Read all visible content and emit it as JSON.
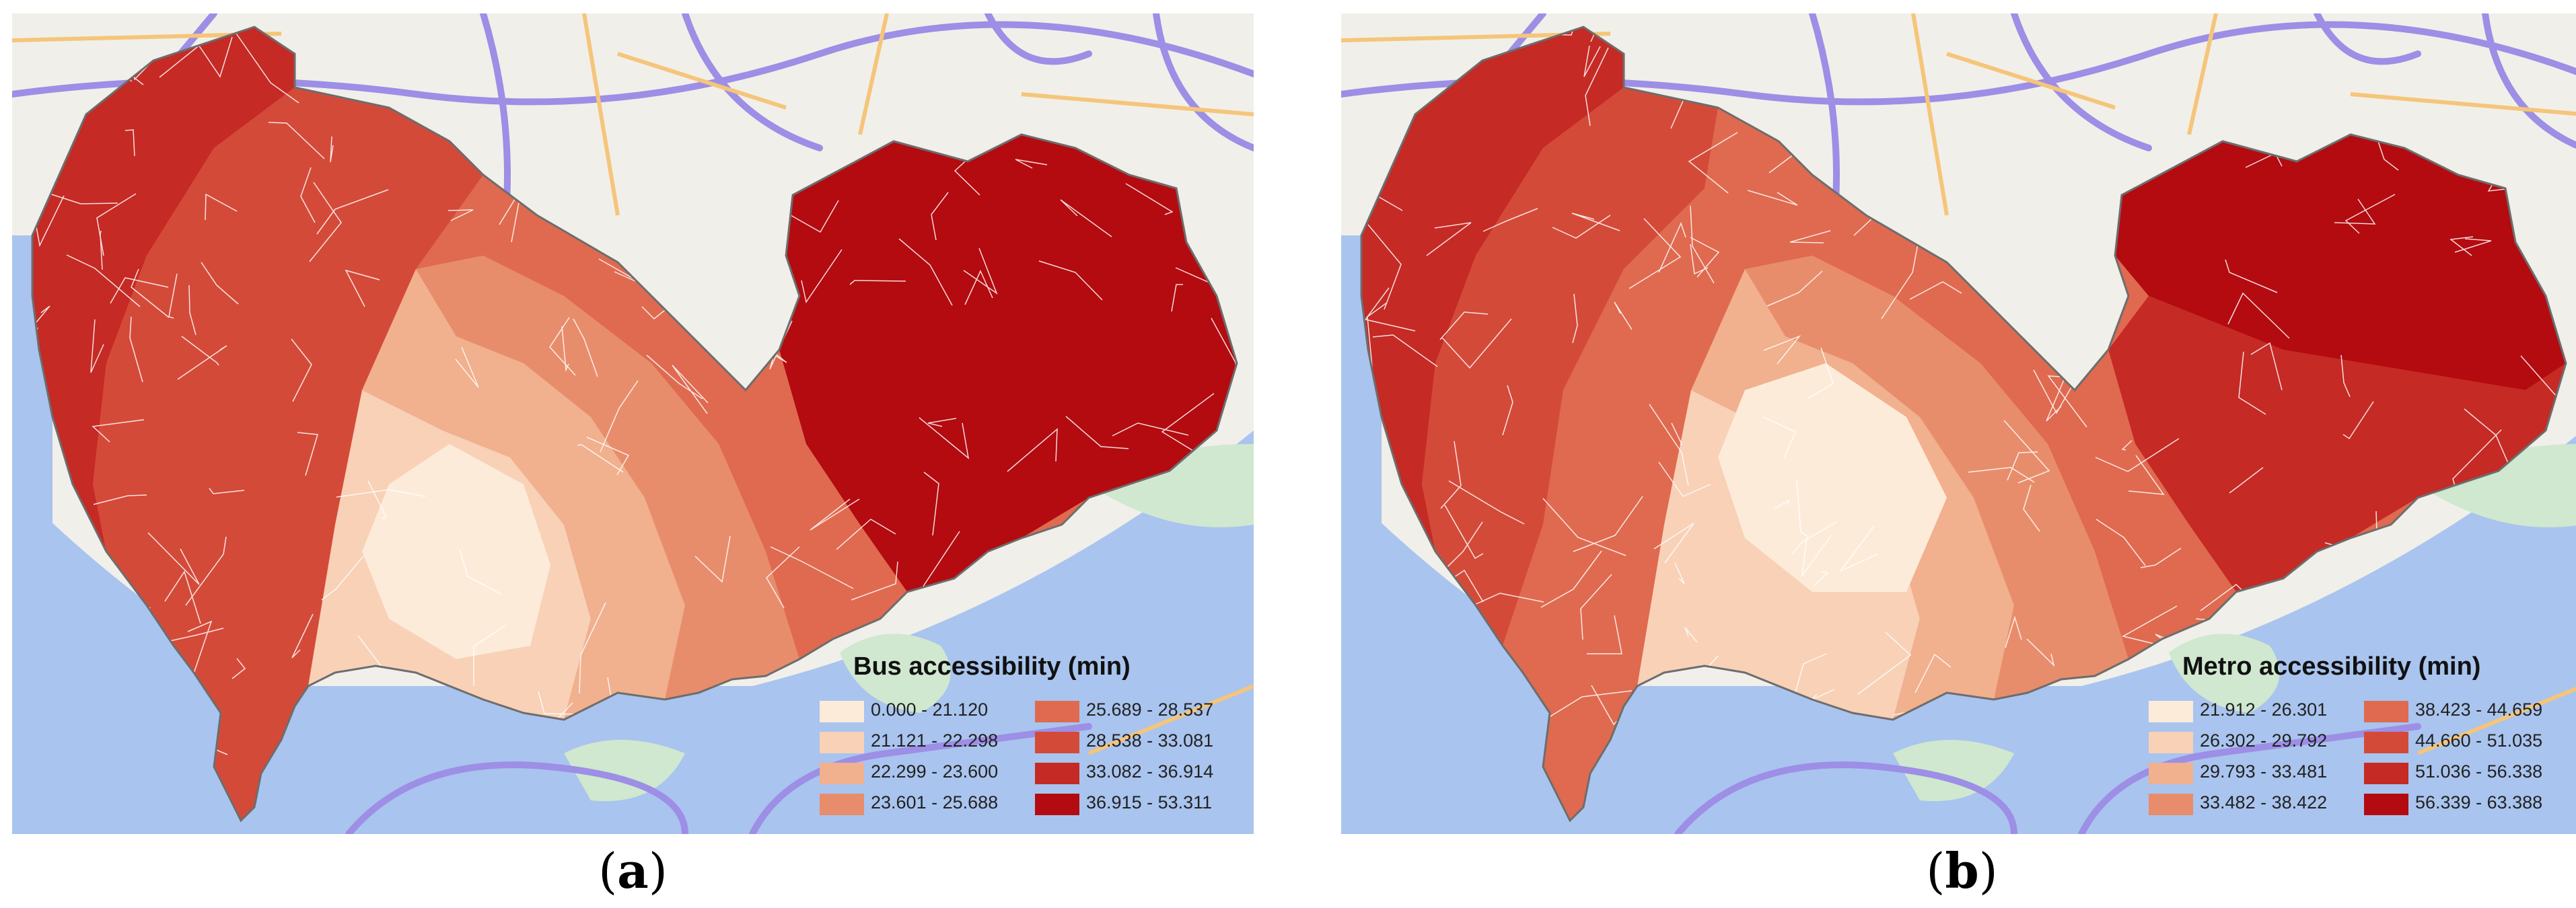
{
  "panels": [
    {
      "id": "a",
      "caption_letter": "a",
      "legend_title": "Bus accessibility (min)",
      "legend": [
        {
          "range": "0.000 - 21.120",
          "color": "#fdebd9"
        },
        {
          "range": "21.121 - 22.298",
          "color": "#f8d1b7"
        },
        {
          "range": "22.299 - 23.600",
          "color": "#f1b08e"
        },
        {
          "range": "23.601 - 25.688",
          "color": "#e88d6b"
        },
        {
          "range": "25.689 - 28.537",
          "color": "#df6a50"
        },
        {
          "range": "28.538 - 33.081",
          "color": "#d44a39"
        },
        {
          "range": "33.082 - 36.914",
          "color": "#c52a25"
        },
        {
          "range": "36.915 - 53.311",
          "color": "#b30b10"
        }
      ]
    },
    {
      "id": "b",
      "caption_letter": "b",
      "legend_title": "Metro accessibility (min)",
      "legend": [
        {
          "range": "21.912 - 26.301",
          "color": "#fdebd9"
        },
        {
          "range": "26.302 - 29.792",
          "color": "#f8d1b7"
        },
        {
          "range": "29.793 - 33.481",
          "color": "#f1b08e"
        },
        {
          "range": "33.482 - 38.422",
          "color": "#e88d6b"
        },
        {
          "range": "38.423 - 44.659",
          "color": "#df6a50"
        },
        {
          "range": "44.660 - 51.035",
          "color": "#d44a39"
        },
        {
          "range": "51.036 - 56.338",
          "color": "#c52a25"
        },
        {
          "range": "56.339 - 63.388",
          "color": "#b30b10"
        }
      ]
    }
  ],
  "map_colors": {
    "sea": "#a9c4ee",
    "land": "#f1efe9",
    "green": "#cfe8cf",
    "highway": "#9d8ee6",
    "road": "#f5c57a",
    "boundary": "#ffffff"
  }
}
